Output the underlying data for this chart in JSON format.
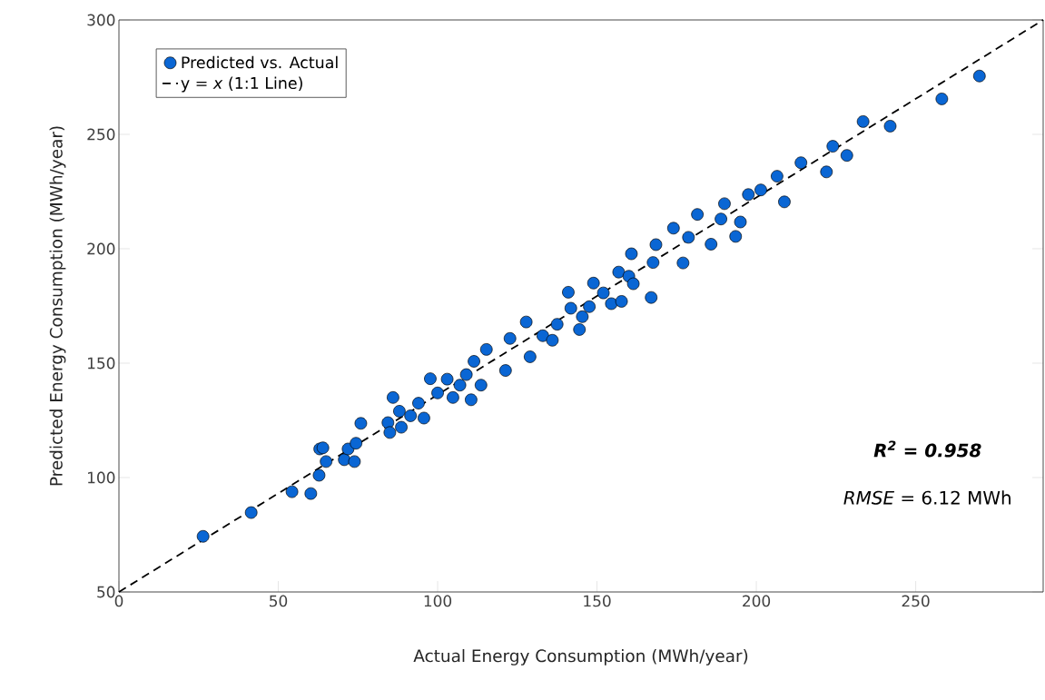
{
  "chart_data": {
    "type": "scatter",
    "xlabel": "Actual Energy Consumption (MWh/year)",
    "ylabel": "Predicted Energy Consumption (MWh/year)",
    "xlim": [
      0,
      290
    ],
    "ylim": [
      50,
      300
    ],
    "xticks": [
      0,
      50,
      100,
      150,
      200,
      250
    ],
    "yticks": [
      50,
      100,
      150,
      200,
      250,
      300
    ],
    "grid": false,
    "legend": "top left",
    "marker": "circle",
    "annotations": [
      "R$^{2}$ = 0.958",
      "*RMSE* = 6.12 MWh"
    ],
    "series": [
      {
        "name": "Predicted vs. Actual",
        "color": "#0a66d4",
        "x": [
          26.4,
          41.5,
          54.3,
          60.2,
          62.8,
          63,
          64,
          65,
          70.7,
          71.9,
          73.9,
          74.4,
          75.9,
          84.4,
          85,
          86,
          88,
          88.6,
          91.5,
          94,
          95.7,
          97.7,
          100,
          103,
          104.8,
          107,
          109,
          110.5,
          111.4,
          113.6,
          115.3,
          121.3,
          122.7,
          127.8,
          129,
          133,
          136,
          137.5,
          141.8,
          141,
          144.5,
          145.4,
          147.6,
          148.9,
          152,
          154.5,
          156.8,
          157.7,
          160,
          160.8,
          161.4,
          167,
          167.6,
          168.5,
          174,
          177,
          178.7,
          181.5,
          185.8,
          188.9,
          190,
          193.5,
          195,
          197.5,
          201.4,
          206.5,
          208.8,
          214,
          222,
          224,
          228.4,
          233.5,
          242,
          258.2,
          270
        ],
        "values": [
          74.3,
          84.7,
          93.8,
          93,
          101,
          112.5,
          113,
          107,
          107.8,
          112.5,
          107,
          115,
          123.7,
          124,
          119.7,
          135,
          129,
          122,
          127,
          132.5,
          126,
          143.2,
          137,
          143,
          135,
          140.4,
          145,
          134,
          150.8,
          140.4,
          156,
          146.8,
          160.8,
          168,
          152.8,
          162,
          160,
          167,
          174,
          181,
          164.7,
          170.3,
          174.7,
          185,
          180.7,
          176,
          189.8,
          177,
          188,
          197.8,
          184.7,
          178.7,
          194,
          201.8,
          209,
          193.8,
          205,
          215,
          202,
          213,
          219.7,
          205.4,
          211.7,
          223.7,
          225.7,
          231.7,
          220.5,
          237.6,
          233.6,
          244.8,
          240.8,
          255.6,
          253.6,
          265.5,
          275.5
        ]
      },
      {
        "name": "y = *x* (1:1 Line)",
        "type": "line",
        "color": "#000000",
        "line_style": "dashed",
        "marker": "none",
        "x": [
          0,
          290
        ],
        "values": [
          50,
          300
        ]
      }
    ]
  }
}
